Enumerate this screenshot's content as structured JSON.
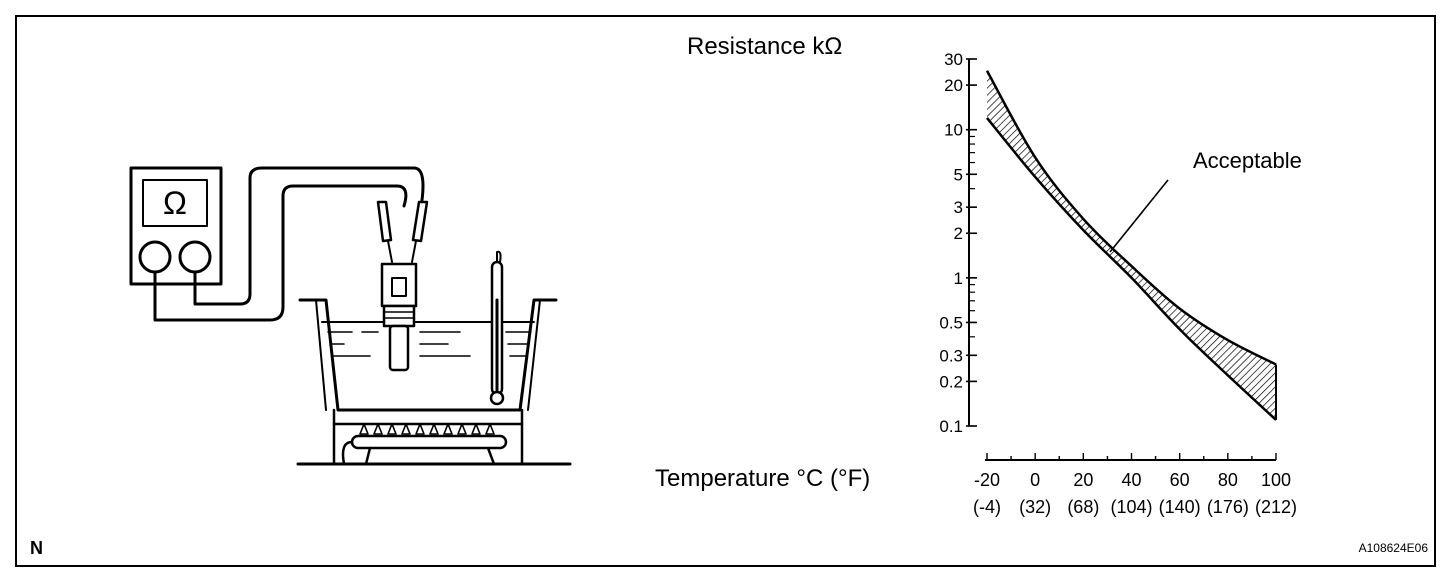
{
  "page_letter": "N",
  "figure_code": "A108624E06",
  "meter_symbol": "Ω",
  "colors": {
    "ink": "#000000",
    "paper": "#ffffff"
  },
  "chart_data": {
    "type": "area",
    "ylabel": "Resistance kΩ",
    "xlabel": "Temperature °C (°F)",
    "yscale": "log",
    "ylim": [
      0.1,
      30
    ],
    "xlim": [
      -20,
      100
    ],
    "yticks": [
      30,
      20,
      10,
      5,
      3,
      2,
      1,
      0.5,
      0.3,
      0.2,
      0.1
    ],
    "ytick_labels": [
      "30",
      "20",
      "10",
      "5",
      "3",
      "2",
      "1",
      "0.5",
      "0.3",
      "0.2",
      "0.1"
    ],
    "xticks": [
      -20,
      0,
      20,
      40,
      60,
      80,
      100
    ],
    "xtick_labels_c": [
      "-20",
      "0",
      "20",
      "40",
      "60",
      "80",
      "100"
    ],
    "xtick_labels_f": [
      "(-4)",
      "(32)",
      "(68)",
      "(104)",
      "(140)",
      "(176)",
      "(212)"
    ],
    "annotation": "Acceptable",
    "grid": false,
    "band": {
      "x": [
        -20,
        0,
        20,
        40,
        60,
        80,
        100
      ],
      "upper": [
        25,
        6.5,
        2.5,
        1.2,
        0.62,
        0.38,
        0.26
      ],
      "lower": [
        12,
        4.8,
        2.1,
        1.0,
        0.45,
        0.22,
        0.11
      ]
    }
  }
}
